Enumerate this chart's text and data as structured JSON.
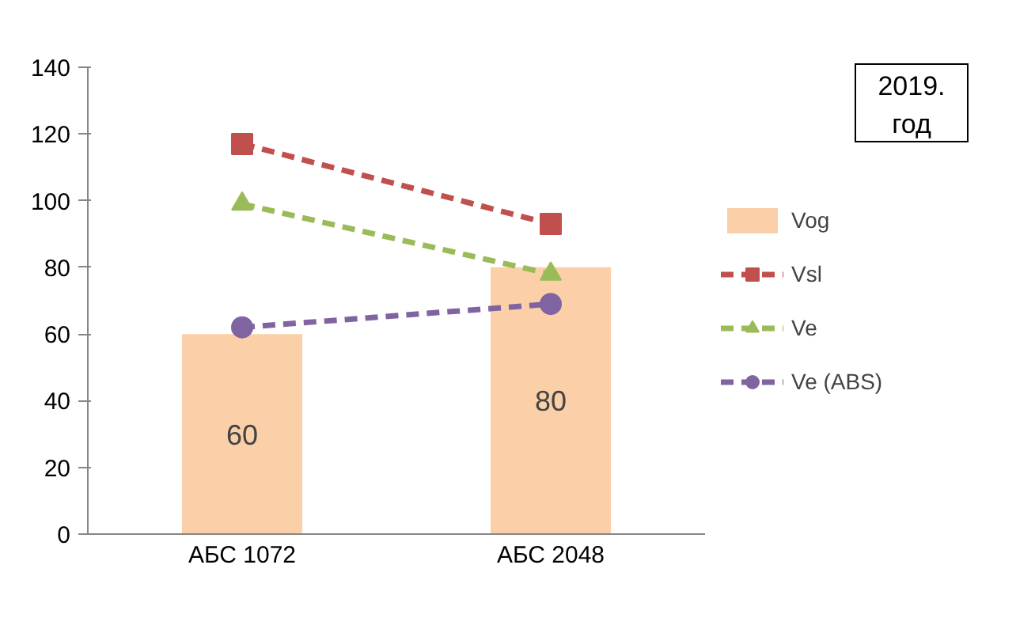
{
  "chart_data": {
    "type": "bar",
    "categories": [
      "АБС 1072",
      "АБС 2048"
    ],
    "series": [
      {
        "name": "Vog",
        "color": "#fbcfa8",
        "values": [
          60,
          80
        ],
        "value_labels": [
          "60",
          "80"
        ]
      },
      {
        "name": "Vsl",
        "type": "line",
        "color": "#c0504d",
        "values": [
          117,
          93
        ],
        "marker": "square",
        "line_style": "dashed"
      },
      {
        "name": "Ve",
        "type": "line",
        "color": "#9bbb59",
        "values": [
          99,
          78
        ],
        "marker": "triangle",
        "line_style": "dashed"
      },
      {
        "name": "Ve (ABS)",
        "type": "line",
        "color": "#8064a2",
        "values": [
          62,
          69
        ],
        "marker": "circle",
        "line_style": "dashed"
      }
    ],
    "ylim": [
      0,
      140
    ],
    "yticks": [
      0,
      20,
      40,
      60,
      80,
      100,
      120,
      140
    ],
    "grid": false,
    "legend": "right",
    "annotations": [
      "2019.\nгод"
    ]
  }
}
